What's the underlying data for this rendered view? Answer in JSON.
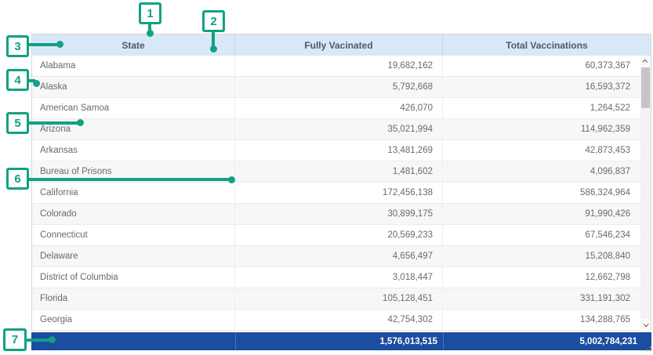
{
  "table": {
    "columns": [
      {
        "label": "State"
      },
      {
        "label": "Fully Vacinated"
      },
      {
        "label": "Total Vaccinations"
      }
    ],
    "rows": [
      {
        "state": "Alabama",
        "fully": "19,682,162",
        "total": "60,373,367"
      },
      {
        "state": "Alaska",
        "fully": "5,792,668",
        "total": "16,593,372"
      },
      {
        "state": "American Samoa",
        "fully": "426,070",
        "total": "1,264,522"
      },
      {
        "state": "Arizona",
        "fully": "35,021,994",
        "total": "114,962,359"
      },
      {
        "state": "Arkansas",
        "fully": "13,481,269",
        "total": "42,873,453"
      },
      {
        "state": "Bureau of Prisons",
        "fully": "1,481,602",
        "total": "4,096,837"
      },
      {
        "state": "California",
        "fully": "172,456,138",
        "total": "586,324,964"
      },
      {
        "state": "Colorado",
        "fully": "30,899,175",
        "total": "91,990,426"
      },
      {
        "state": "Connecticut",
        "fully": "20,569,233",
        "total": "67,546,234"
      },
      {
        "state": "Delaware",
        "fully": "4,656,497",
        "total": "15,208,840"
      },
      {
        "state": "District of Columbia",
        "fully": "3,018,447",
        "total": "12,662,798"
      },
      {
        "state": "Florida",
        "fully": "105,128,451",
        "total": "331,191,302"
      },
      {
        "state": "Georgia",
        "fully": "42,754,302",
        "total": "134,288,765"
      }
    ],
    "totals": {
      "fully": "1,576,013,515",
      "total": "5,002,784,231"
    }
  },
  "callouts": [
    {
      "number": "1"
    },
    {
      "number": "2"
    },
    {
      "number": "3"
    },
    {
      "number": "4"
    },
    {
      "number": "5"
    },
    {
      "number": "6"
    },
    {
      "number": "7"
    }
  ],
  "colors": {
    "callout_accent": "#12a183",
    "header_bg": "#d9e8f6",
    "header_text": "#4d5a66",
    "total_row_bg": "#1b4da1",
    "alt_row_bg": "#f7f7f7",
    "body_text": "#6a6a6a"
  }
}
